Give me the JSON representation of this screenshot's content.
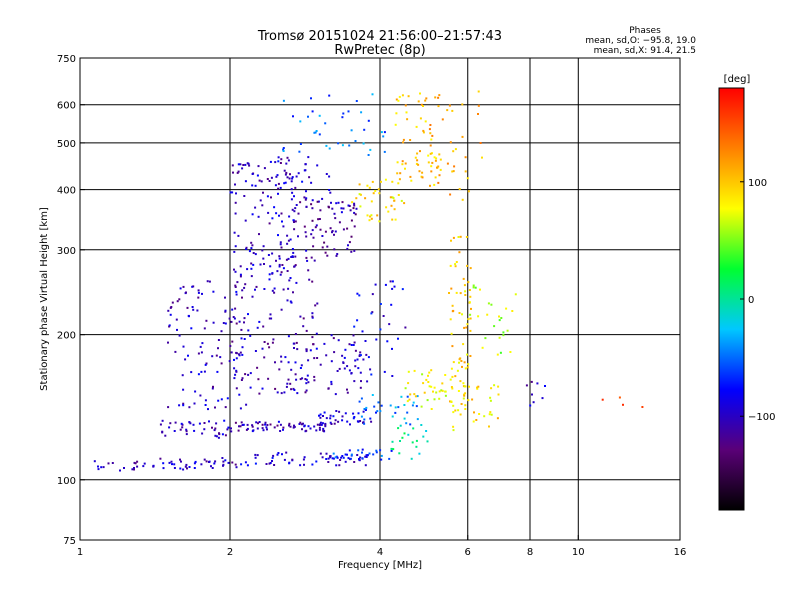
{
  "figure": {
    "title_line1": "Tromsø 20151024 21:56:00–21:57:43",
    "title_line2": "RwPretec (8p)",
    "phases_heading": "Phases",
    "phases_o": "mean, sd,O:  −95.8, 19.0",
    "phases_x": "mean, sd,X:  91.4, 21.5",
    "colorbar_label": "[deg]"
  },
  "chart_data": {
    "type": "scatter",
    "xlabel": "Frequency [MHz]",
    "ylabel": "Stationary phase Virtual Height [km]",
    "x_scale": "log2",
    "y_scale": "log",
    "xlim": [
      1,
      16
    ],
    "ylim": [
      75,
      750
    ],
    "xticks": [
      {
        "value": 1,
        "label": "1"
      },
      {
        "value": 2,
        "label": "2"
      },
      {
        "value": 4,
        "label": "4"
      },
      {
        "value": 6,
        "label": "6"
      },
      {
        "value": 8,
        "label": "8"
      },
      {
        "value": 10,
        "label": "10"
      },
      {
        "value": 16,
        "label": "16"
      }
    ],
    "yticks": [
      {
        "value": 75,
        "label": "75"
      },
      {
        "value": 100,
        "label": "100"
      },
      {
        "value": 200,
        "label": "200"
      },
      {
        "value": 300,
        "label": "300"
      },
      {
        "value": 400,
        "label": "400"
      },
      {
        "value": 500,
        "label": "500"
      },
      {
        "value": 600,
        "label": "600"
      },
      {
        "value": 750,
        "label": "750"
      }
    ],
    "grid": true,
    "colorbar": {
      "range": [
        -180,
        180
      ],
      "ticks": [
        {
          "value": 100,
          "label": "100"
        },
        {
          "value": 0,
          "label": "0"
        },
        {
          "value": -100,
          "label": "−100"
        }
      ],
      "colormap": [
        "#000000",
        "#5a0078",
        "#0000ff",
        "#00c8ff",
        "#00ff30",
        "#ffff00",
        "#ff8000",
        "#ff0000"
      ]
    },
    "clusters": [
      {
        "x_range": [
          1.02,
          1.35
        ],
        "y_range": [
          104,
          110
        ],
        "phase": -105,
        "count": 18
      },
      {
        "x_range": [
          1.4,
          2.1
        ],
        "y_range": [
          105,
          111
        ],
        "phase": -100,
        "count": 40
      },
      {
        "x_range": [
          2.1,
          3.8
        ],
        "y_range": [
          107,
          114
        ],
        "phase": -95,
        "count": 60
      },
      {
        "x_range": [
          3.2,
          4.3
        ],
        "y_range": [
          110,
          116
        ],
        "phase": -60,
        "count": 25
      },
      {
        "x_range": [
          1.45,
          2.0
        ],
        "y_range": [
          122,
          133
        ],
        "phase": -100,
        "count": 40
      },
      {
        "x_range": [
          2.0,
          3.2
        ],
        "y_range": [
          126,
          132
        ],
        "phase": -105,
        "count": 70
      },
      {
        "x_range": [
          3.0,
          4.0
        ],
        "y_range": [
          130,
          140
        ],
        "phase": -95,
        "count": 35
      },
      {
        "x_range": [
          3.6,
          4.8
        ],
        "y_range": [
          130,
          150
        ],
        "phase": -40,
        "count": 30
      },
      {
        "x_range": [
          4.5,
          5.5
        ],
        "y_range": [
          140,
          170
        ],
        "phase": 80,
        "count": 35
      },
      {
        "x_range": [
          5.5,
          7.0
        ],
        "y_range": [
          125,
          160
        ],
        "phase": 90,
        "count": 35
      },
      {
        "x_range": [
          1.5,
          2.2
        ],
        "y_range": [
          140,
          260
        ],
        "phase": -100,
        "count": 110
      },
      {
        "x_range": [
          2.0,
          3.0
        ],
        "y_range": [
          150,
          300
        ],
        "phase": -105,
        "count": 130
      },
      {
        "x_range": [
          2.6,
          3.8
        ],
        "y_range": [
          150,
          200
        ],
        "phase": -100,
        "count": 60
      },
      {
        "x_range": [
          3.5,
          4.5
        ],
        "y_range": [
          160,
          260
        ],
        "phase": -90,
        "count": 40
      },
      {
        "x_range": [
          2.0,
          2.7
        ],
        "y_range": [
          260,
          460
        ],
        "phase": -100,
        "count": 110
      },
      {
        "x_range": [
          2.6,
          3.6
        ],
        "y_range": [
          290,
          380
        ],
        "phase": -110,
        "count": 80
      },
      {
        "x_range": [
          2.3,
          3.2
        ],
        "y_range": [
          380,
          470
        ],
        "phase": -95,
        "count": 40
      },
      {
        "x_range": [
          3.5,
          4.5
        ],
        "y_range": [
          340,
          420
        ],
        "phase": 90,
        "count": 40
      },
      {
        "x_range": [
          4.3,
          5.3
        ],
        "y_range": [
          400,
          640
        ],
        "phase": 100,
        "count": 60
      },
      {
        "x_range": [
          5.0,
          6.5
        ],
        "y_range": [
          380,
          640
        ],
        "phase": 110,
        "count": 40
      },
      {
        "x_range": [
          5.5,
          6.1
        ],
        "y_range": [
          140,
          320
        ],
        "phase": 95,
        "count": 70
      },
      {
        "x_range": [
          6.0,
          7.5
        ],
        "y_range": [
          180,
          260
        ],
        "phase": 60,
        "count": 25
      },
      {
        "x_range": [
          4.2,
          5.0
        ],
        "y_range": [
          110,
          130
        ],
        "phase": 0,
        "count": 20
      },
      {
        "x_range": [
          7.7,
          8.6
        ],
        "y_range": [
          140,
          160
        ],
        "phase": -100,
        "count": 8
      },
      {
        "x_range": [
          10.5,
          14.0
        ],
        "y_range": [
          140,
          150
        ],
        "phase": 150,
        "count": 4
      },
      {
        "x_range": [
          2.5,
          4.2
        ],
        "y_range": [
          470,
          640
        ],
        "phase": -50,
        "count": 40
      }
    ]
  }
}
